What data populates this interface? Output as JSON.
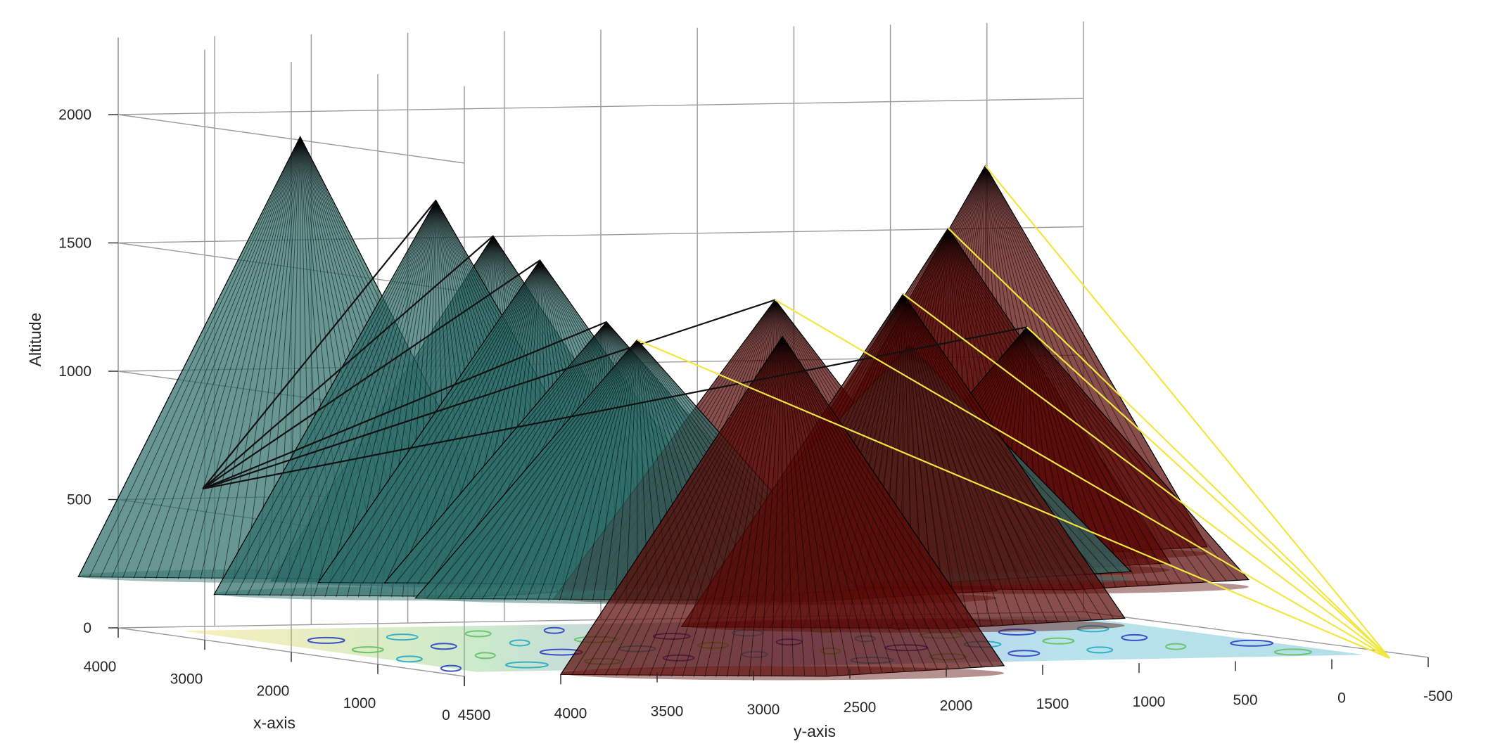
{
  "chart_data": {
    "type": "3d-surface",
    "title": "",
    "xlabel": "x-axis",
    "ylabel": "y-axis",
    "zlabel": "Altitude",
    "xlim": [
      0,
      4000
    ],
    "ylim": [
      -500,
      4500
    ],
    "zlim": [
      0,
      2000
    ],
    "x_ticks": [
      "4000",
      "3000",
      "2000",
      "1000",
      "0"
    ],
    "y_ticks": [
      "4500",
      "4000",
      "3500",
      "3000",
      "2500",
      "2000",
      "1500",
      "1000",
      "500",
      "0",
      "-500"
    ],
    "z_ticks": [
      "0",
      "500",
      "1000",
      "1500",
      "2000"
    ],
    "grid": true,
    "series": [
      {
        "kind": "cones",
        "color": "#2e6e6a",
        "cones": [
          {
            "x": 2900,
            "y": 4050,
            "apex": 1960,
            "base": 260
          },
          {
            "x": 2000,
            "y": 3750,
            "apex": 1750,
            "base": 230
          },
          {
            "x": 2900,
            "y": 3050,
            "apex": 1560,
            "base": 230
          },
          {
            "x": 1800,
            "y": 3300,
            "apex": 1520,
            "base": 280
          },
          {
            "x": 1700,
            "y": 3000,
            "apex": 1280,
            "base": 280
          },
          {
            "x": 900,
            "y": 3200,
            "apex": 1250,
            "base": 260
          },
          {
            "x": 1100,
            "y": 1700,
            "apex": 1200,
            "base": 300
          }
        ]
      },
      {
        "kind": "cones",
        "color": "#5a0a06",
        "cones": [
          {
            "x": 0,
            "y": 2850,
            "apex": 1300,
            "base": 0
          },
          {
            "x": 1200,
            "y": 2350,
            "apex": 1380,
            "base": 230
          },
          {
            "x": 500,
            "y": 2000,
            "apex": 1430,
            "base": 150
          },
          {
            "x": 1300,
            "y": 1000,
            "apex": 1250,
            "base": 250
          },
          {
            "x": 2100,
            "y": 1050,
            "apex": 1600,
            "base": 280
          },
          {
            "x": 2900,
            "y": 500,
            "apex": 1800,
            "base": 300
          }
        ]
      },
      {
        "kind": "paths",
        "color": "#111111",
        "from": {
          "x": 2800,
          "y": 4600,
          "z": 600
        },
        "to": [
          {
            "x": 2000,
            "y": 3750,
            "z": 1750
          },
          {
            "x": 2900,
            "y": 3050,
            "z": 1560
          },
          {
            "x": 1800,
            "y": 3300,
            "z": 1520
          },
          {
            "x": 1700,
            "y": 3000,
            "z": 1280
          },
          {
            "x": 1200,
            "y": 2350,
            "z": 1380
          },
          {
            "x": 1300,
            "y": 1000,
            "z": 1250
          }
        ]
      },
      {
        "kind": "paths",
        "color": "#f2e640",
        "from": {
          "x": 0,
          "y": -300,
          "z": 0
        },
        "to": [
          {
            "x": 900,
            "y": 3200,
            "z": 1250
          },
          {
            "x": 1200,
            "y": 2350,
            "z": 1380
          },
          {
            "x": 500,
            "y": 2000,
            "z": 1430
          },
          {
            "x": 1300,
            "y": 1000,
            "z": 1250
          },
          {
            "x": 2100,
            "y": 1050,
            "z": 1600
          },
          {
            "x": 2900,
            "y": 500,
            "z": 1800
          }
        ]
      }
    ]
  }
}
